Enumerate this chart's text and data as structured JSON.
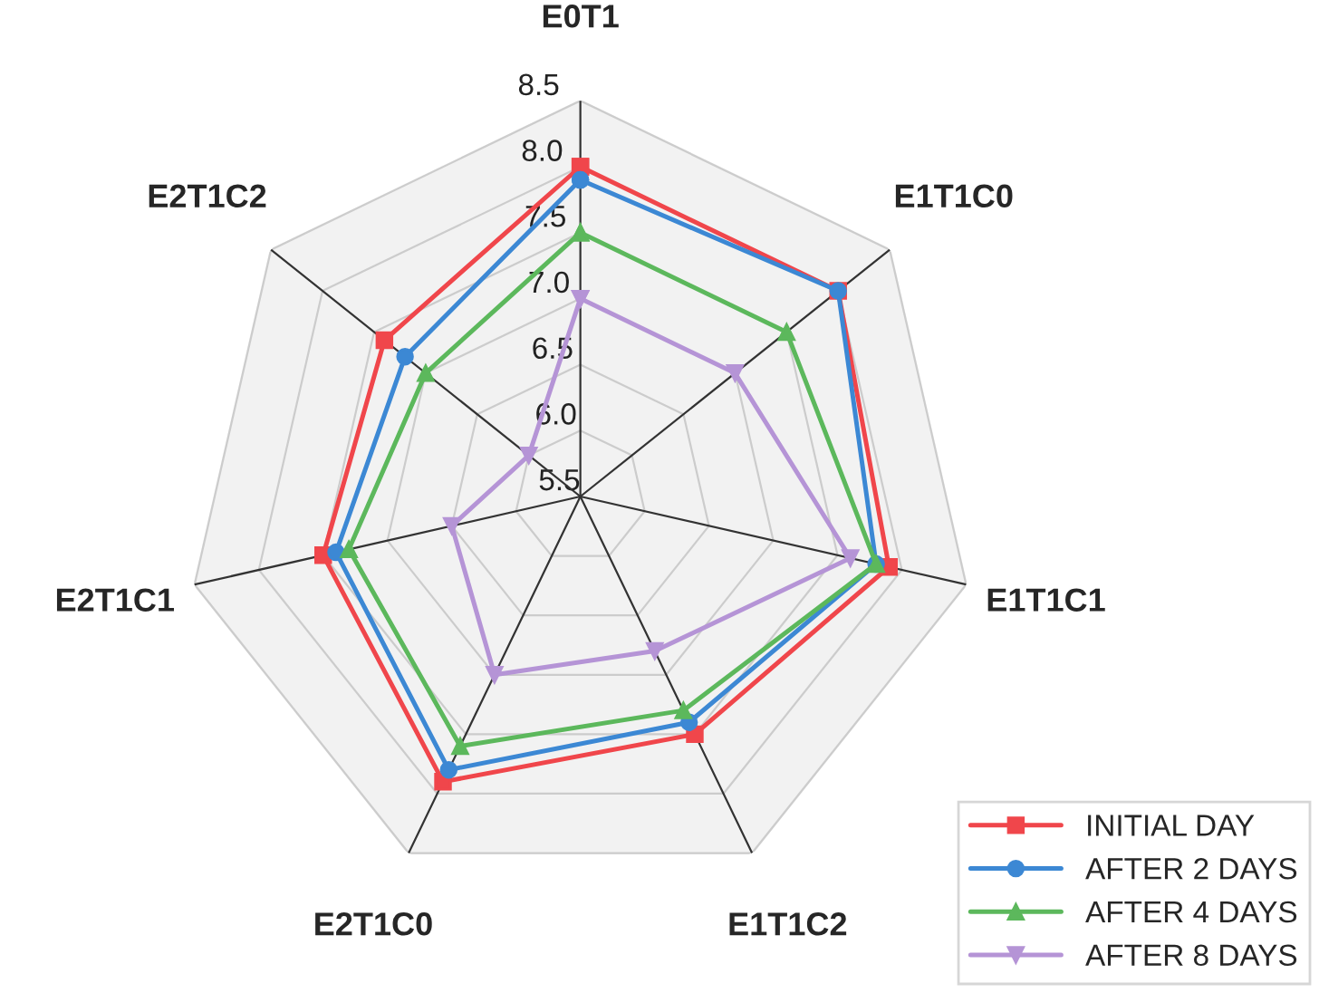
{
  "chart_data": {
    "type": "radar",
    "categories": [
      "E0T1",
      "E1T1C0",
      "E1T1C1",
      "E1T1C2",
      "E2T1C0",
      "E2T1C1",
      "E2T1C2"
    ],
    "ylim": [
      5.5,
      8.5
    ],
    "yticks": [
      5.5,
      {
        "value": 6.0,
        "label": "6.0"
      },
      6.5,
      {
        "value": 7.0,
        "label": "7.0"
      },
      7.5,
      {
        "value": 8.0,
        "label": "8.0"
      },
      8.5
    ],
    "grid": true,
    "legend": "bottom right",
    "series": [
      {
        "name": "INITIAL DAY",
        "color": "#f0464b",
        "marker": "square",
        "values": [
          8.0,
          8.0,
          7.9,
          7.5,
          7.9,
          7.5,
          7.4
        ]
      },
      {
        "name": "AFTER 2 DAYS",
        "color": "#3c88d4",
        "marker": "circle",
        "values": [
          7.9,
          8.0,
          7.8,
          7.4,
          7.8,
          7.4,
          7.2
        ]
      },
      {
        "name": "AFTER 4 DAYS",
        "color": "#5cb85c",
        "marker": "triangle",
        "values": [
          7.5,
          7.5,
          7.8,
          7.3,
          7.6,
          7.3,
          7.0
        ]
      },
      {
        "name": "AFTER 8 DAYS",
        "color": "#b594d6",
        "marker": "triangle_down",
        "values": [
          7.0,
          7.0,
          7.6,
          6.8,
          7.0,
          6.5,
          6.0
        ]
      }
    ]
  }
}
